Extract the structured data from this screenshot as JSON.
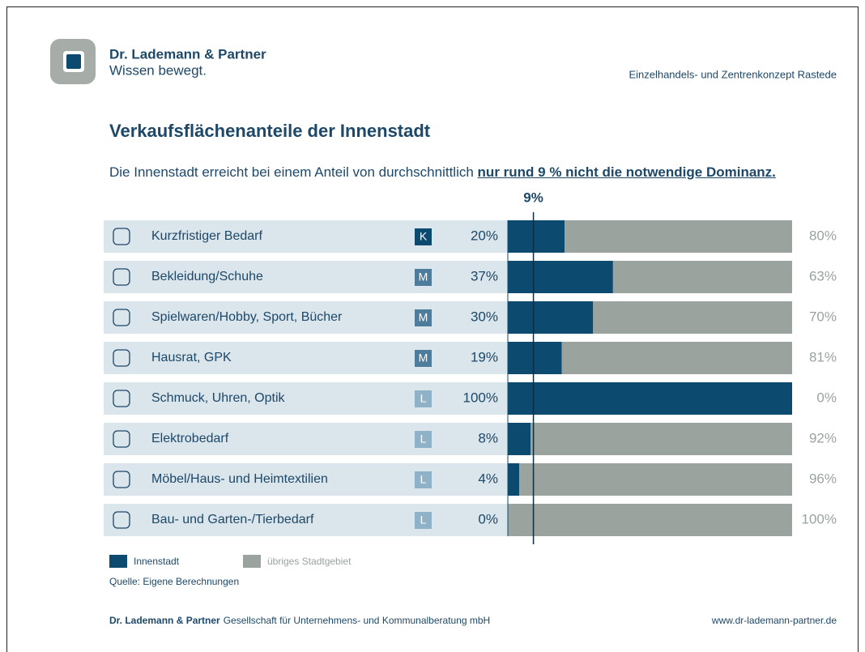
{
  "header": {
    "brand": "Dr. Lademann & Partner",
    "slogan": "Wissen bewegt.",
    "document": "Einzelhandels- und Zentrenkonzept Rastede"
  },
  "chart_data": {
    "type": "bar",
    "orientation": "horizontal",
    "stacked": true,
    "title": "Verkaufsflächenanteile der Innenstadt",
    "subtitle": [
      "Die Innenstadt erreicht bei einem Anteil von durchschnittlich",
      "nur rund 9 % nicht die notwendige Dominanz."
    ],
    "categories": [
      "Kurzfristiger Bedarf",
      "Bekleidung/Schuhe",
      "Spielwaren/Hobby, Sport, Bücher",
      "Hausrat, GPK",
      "Schmuck, Uhren, Optik",
      "Elektrobedarf",
      "Möbel/Haus- und Heimtextilien",
      "Bau- und Garten-/Tierbedarf"
    ],
    "badges": [
      "K",
      "M",
      "M",
      "M",
      "L",
      "L",
      "L",
      "L"
    ],
    "badge_colors": {
      "K": "#0d4a70",
      "M": "#4d7c9c",
      "L": "#8fb2c8"
    },
    "series": [
      {
        "name": "Innenstadt",
        "color": "#0d4a70",
        "values": [
          20,
          37,
          30,
          19,
          100,
          8,
          4,
          0
        ],
        "value_labels": [
          "20%",
          "37%",
          "30%",
          "19%",
          "100%",
          "8%",
          "4%",
          "0%"
        ]
      },
      {
        "name": "übriges Stadtgebiet",
        "color": "#9aa39d",
        "values": [
          80,
          63,
          70,
          81,
          0,
          92,
          96,
          100
        ],
        "value_labels": [
          "80%",
          "63%",
          "70%",
          "81%",
          "0%",
          "92%",
          "96%",
          "100%"
        ]
      }
    ],
    "xlim": [
      0,
      100
    ],
    "reference": {
      "value": 9,
      "label": "9%"
    },
    "source": "Quelle: Eigene Berechnungen"
  },
  "footer": {
    "company": "Dr. Lademann & Partner",
    "description": "Gesellschaft für Unternehmens- und Kommunalberatung mbH",
    "url": "www.dr-lademann-partner.de"
  }
}
